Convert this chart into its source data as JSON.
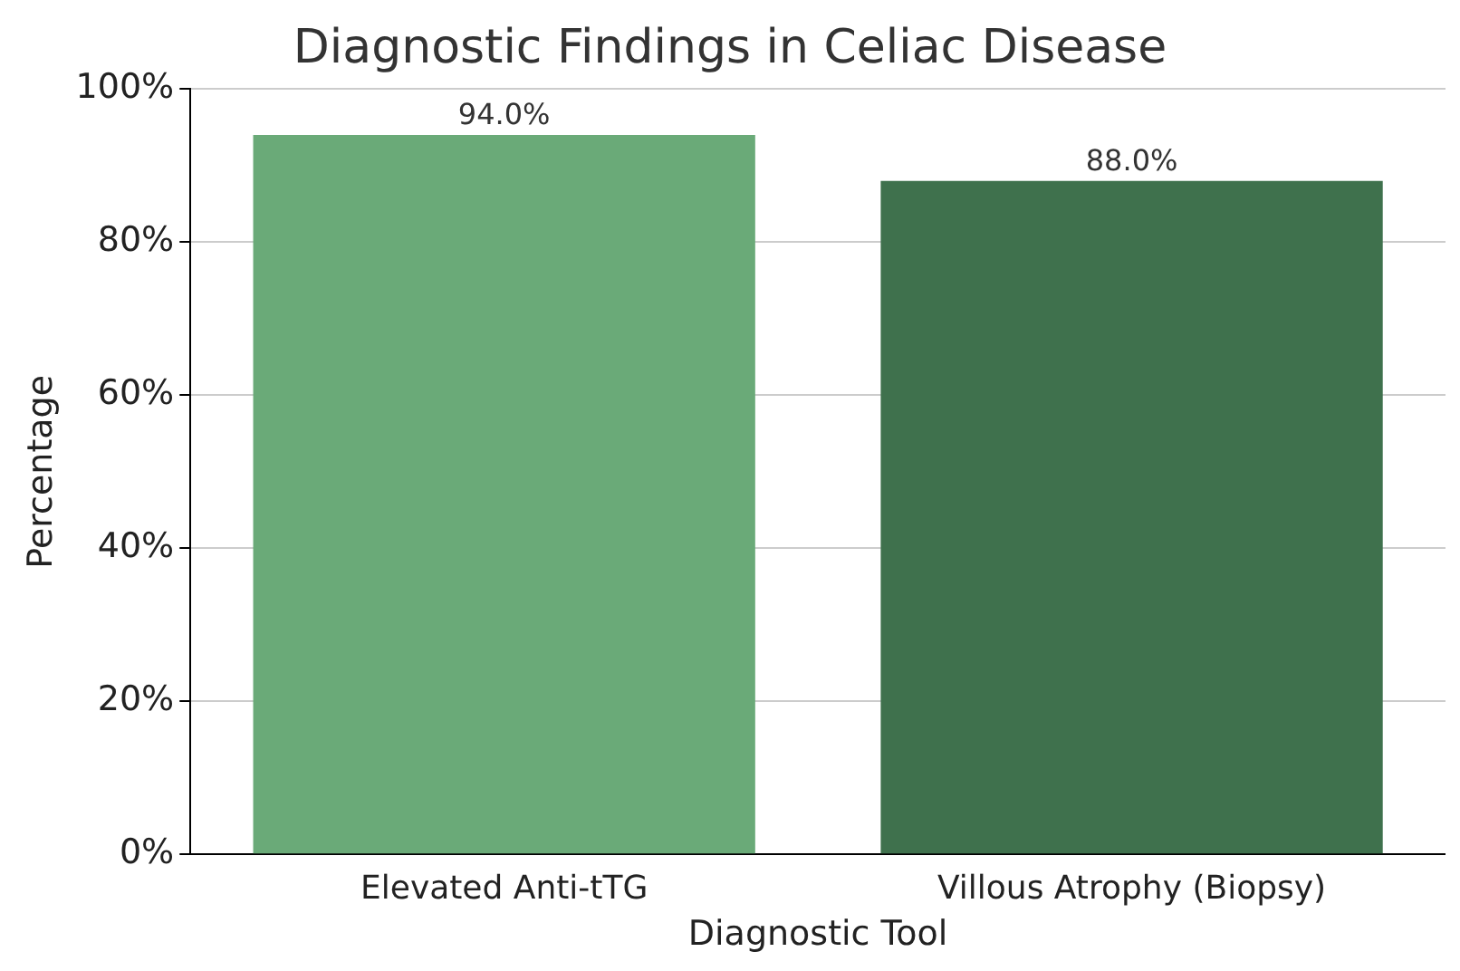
{
  "chart_data": {
    "type": "bar",
    "title": "Diagnostic Findings in Celiac Disease",
    "xlabel": "Diagnostic Tool",
    "ylabel": "Percentage",
    "categories": [
      "Elevated Anti-tTG",
      "Villous Atrophy (Biopsy)"
    ],
    "values": [
      94,
      88
    ],
    "colors": [
      "#6aaa78",
      "#3f714d"
    ],
    "value_labels": [
      "94.0%",
      "88.0%"
    ],
    "ylim": [
      0,
      100
    ],
    "yticks": [
      {
        "value": 0,
        "label": "0%"
      },
      {
        "value": 20,
        "label": "20%"
      },
      {
        "value": 40,
        "label": "40%"
      },
      {
        "value": 60,
        "label": "60%"
      },
      {
        "value": 80,
        "label": "80%"
      },
      {
        "value": 100,
        "label": "100%"
      }
    ],
    "grid": "y",
    "legend": false
  }
}
